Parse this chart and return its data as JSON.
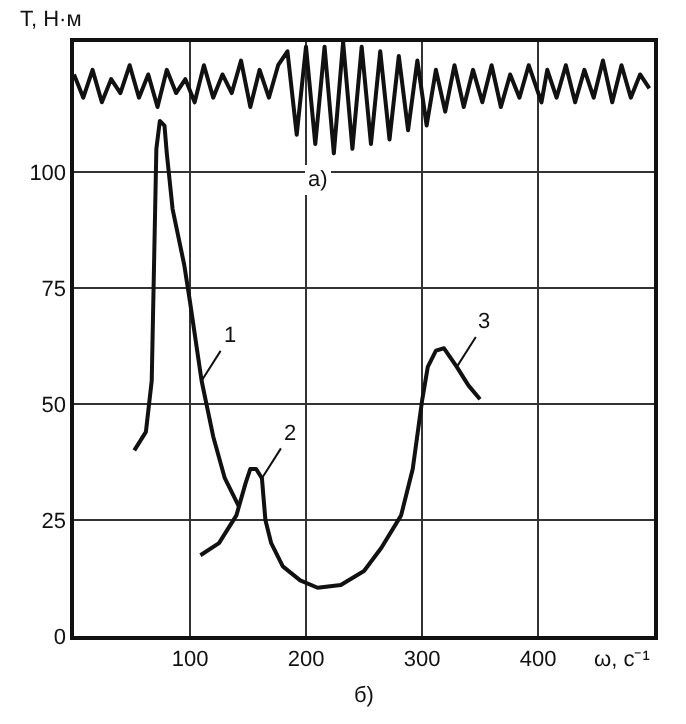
{
  "chart_data": {
    "type": "line",
    "xlabel": "ω, с⁻¹",
    "ylabel": "T, Н·м",
    "xlim": [
      0,
      500
    ],
    "ylim": [
      0,
      128
    ],
    "xticks": [
      100,
      200,
      300,
      400
    ],
    "yticks": [
      0,
      25,
      50,
      75,
      100
    ],
    "grid": true,
    "legend": false,
    "marker": "none",
    "line_style": "solid",
    "series": [
      {
        "color": "#111111",
        "x": [
          0,
          8,
          16,
          24,
          32,
          40,
          48,
          56,
          64,
          72,
          80,
          88,
          96,
          104,
          112,
          120,
          128,
          136,
          144,
          152,
          160,
          168,
          176,
          184,
          192,
          200,
          208,
          216,
          224,
          232,
          240,
          248,
          256,
          264,
          272,
          280,
          288,
          296,
          304,
          312,
          320,
          328,
          336,
          344,
          352,
          360,
          368,
          376,
          384,
          392,
          403,
          408,
          416,
          424,
          432,
          440,
          448,
          456,
          464,
          472,
          480,
          488,
          496
        ],
        "values": [
          121,
          116,
          122,
          115,
          120,
          117,
          123,
          116,
          121,
          114,
          122,
          117,
          120,
          115,
          123,
          116,
          121,
          117,
          124,
          114,
          122,
          116,
          123,
          126,
          108,
          127,
          106,
          127,
          104,
          128,
          105,
          127,
          106,
          126,
          107,
          125,
          109,
          124,
          110,
          122,
          113,
          123,
          114,
          122,
          115,
          123,
          114,
          121,
          116,
          123,
          115,
          122,
          116,
          123,
          115,
          122,
          116,
          124,
          115,
          123,
          116,
          121,
          118
        ]
      },
      {
        "color": "#111111",
        "x": [
          52,
          62,
          67,
          69,
          71,
          74,
          78,
          80,
          85,
          95,
          100,
          110,
          120,
          130,
          142
        ],
        "values": [
          40,
          44,
          55,
          80,
          105,
          111,
          110,
          104,
          92,
          80,
          72,
          55,
          43,
          34,
          28
        ]
      },
      {
        "color": "#111111",
        "x": [
          109,
          125,
          140,
          148,
          152,
          157,
          162,
          165,
          170,
          180,
          195,
          210,
          230,
          250,
          265,
          282,
          292,
          300,
          305,
          312,
          319,
          330,
          340,
          350
        ],
        "values": [
          17.4,
          20,
          26,
          33,
          36,
          36,
          34,
          25,
          20,
          15,
          12,
          10.4,
          11,
          14,
          19,
          26,
          36,
          50.6,
          58,
          61.5,
          62,
          58,
          54,
          51
        ]
      }
    ],
    "annotations": [
      {
        "text": "1",
        "x": 110,
        "y": 55
      },
      {
        "text": "2",
        "x": 162,
        "y": 34
      },
      {
        "text": "3",
        "x": 330,
        "y": 58
      },
      "а)",
      "б)"
    ]
  }
}
